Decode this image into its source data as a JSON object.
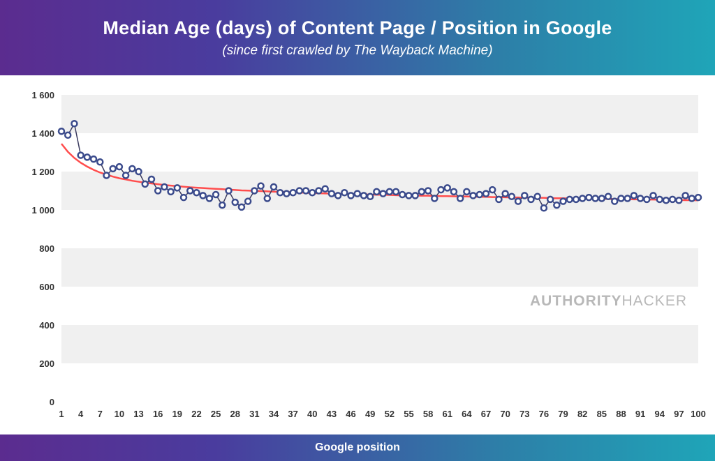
{
  "header": {
    "title": "Median Age (days) of Content Page / Position in Google",
    "subtitle": "(since first crawled by The Wayback Machine)"
  },
  "footer": {
    "xlabel": "Google position"
  },
  "watermark": {
    "bold": "AUTHORITY",
    "thin": "HACKER"
  },
  "chart": {
    "type": "line-scatter",
    "ylim": [
      0,
      1600
    ],
    "ytick_step": 200,
    "yticks": [
      0,
      200,
      400,
      600,
      800,
      "1 000",
      "1 200",
      "1 400",
      "1 600"
    ],
    "xlim": [
      1,
      100
    ],
    "xtick_step": 3,
    "xticks": [
      1,
      4,
      7,
      10,
      13,
      16,
      19,
      22,
      25,
      28,
      31,
      34,
      37,
      40,
      43,
      46,
      49,
      52,
      55,
      58,
      61,
      64,
      67,
      70,
      73,
      76,
      79,
      82,
      85,
      88,
      91,
      94,
      97,
      100
    ],
    "background_color": "#ffffff",
    "grid_band_color": "#f0f0f0",
    "data_line_color": "#3a3a5e",
    "data_line_width": 1.5,
    "trend_line_color": "#ff4d4d",
    "trend_line_width": 2.5,
    "marker_stroke": "#3b4b8c",
    "marker_fill": "#ffffff",
    "marker_radius": 4,
    "marker_stroke_width": 2.5,
    "axis_font_size": 13,
    "axis_text_color": "#333333",
    "values": [
      1410,
      1390,
      1450,
      1285,
      1275,
      1265,
      1250,
      1180,
      1215,
      1225,
      1180,
      1215,
      1200,
      1135,
      1160,
      1100,
      1120,
      1095,
      1115,
      1065,
      1100,
      1090,
      1075,
      1060,
      1080,
      1025,
      1100,
      1040,
      1015,
      1045,
      1100,
      1125,
      1060,
      1120,
      1090,
      1085,
      1090,
      1100,
      1100,
      1090,
      1100,
      1110,
      1085,
      1075,
      1090,
      1075,
      1085,
      1075,
      1070,
      1095,
      1085,
      1095,
      1095,
      1080,
      1075,
      1075,
      1095,
      1100,
      1060,
      1105,
      1115,
      1095,
      1060,
      1095,
      1075,
      1080,
      1085,
      1105,
      1055,
      1085,
      1070,
      1045,
      1075,
      1055,
      1070,
      1010,
      1055,
      1025,
      1045,
      1055,
      1055,
      1060,
      1065,
      1060,
      1060,
      1070,
      1045,
      1060,
      1060,
      1075,
      1060,
      1055,
      1075,
      1055,
      1050,
      1055,
      1050,
      1075,
      1060,
      1065
    ],
    "trend": [
      1345,
      1303,
      1271,
      1246,
      1226,
      1209,
      1195,
      1184,
      1174,
      1165,
      1159,
      1152,
      1147,
      1142,
      1138,
      1134,
      1130,
      1127,
      1124,
      1121,
      1118,
      1116,
      1114,
      1112,
      1110,
      1108,
      1106,
      1104,
      1102,
      1101,
      1099,
      1098,
      1097,
      1095,
      1094,
      1093,
      1092,
      1091,
      1089,
      1088,
      1087,
      1086,
      1085,
      1084,
      1083,
      1083,
      1082,
      1081,
      1080,
      1079,
      1079,
      1078,
      1077,
      1076,
      1076,
      1075,
      1074,
      1074,
      1073,
      1072,
      1072,
      1071,
      1070,
      1070,
      1069,
      1068,
      1068,
      1067,
      1067,
      1066,
      1065,
      1065,
      1064,
      1064,
      1063,
      1063,
      1062,
      1061,
      1061,
      1060,
      1060,
      1059,
      1059,
      1058,
      1058,
      1057,
      1057,
      1056,
      1056,
      1055,
      1055,
      1054,
      1054,
      1053,
      1053,
      1052,
      1052,
      1051,
      1051,
      1050
    ]
  }
}
